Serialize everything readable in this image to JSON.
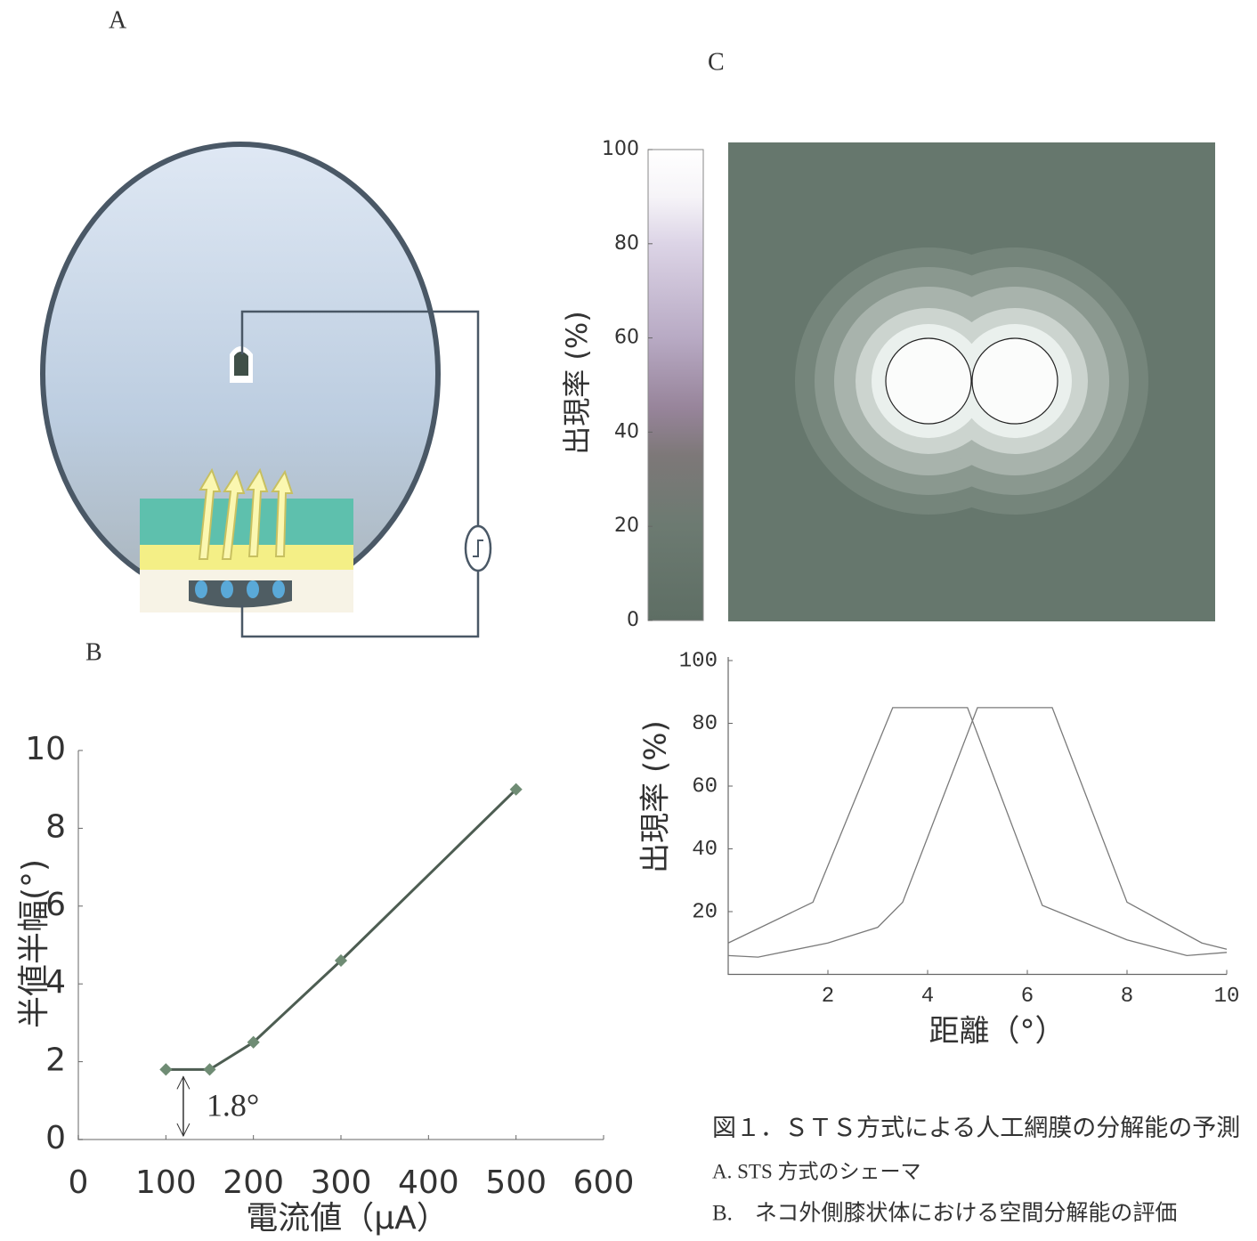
{
  "panel_labels": [
    "A",
    "B",
    "C"
  ],
  "chart_data": [
    {
      "type": "line",
      "x_label": "電流値（μA）",
      "y_label": "半値半幅(°)",
      "x": [
        100,
        150,
        200,
        300,
        500
      ],
      "values": [
        1.8,
        1.8,
        2.5,
        4.6,
        9.0
      ],
      "color": "#4d5d52",
      "marker_color": "#6f8c74",
      "xlim": [
        0,
        600
      ],
      "ylim": [
        0,
        10
      ],
      "xticks": [
        0,
        100,
        200,
        300,
        400,
        500,
        600
      ],
      "yticks": [
        0,
        2,
        4,
        6,
        8,
        10
      ],
      "annotation": "1.8°",
      "grid": false
    },
    {
      "type": "colorbar",
      "y_label": "出現率 (%)",
      "ylim": [
        0,
        100
      ],
      "yticks": [
        0,
        20,
        40,
        60,
        80,
        100
      ]
    },
    {
      "type": "multiline",
      "x_label": "距離（°）",
      "y_label": "出現率 (%)",
      "series": [
        {
          "color": "#7a7a7a",
          "x": [
            0,
            1.7,
            3.3,
            4.8,
            6.3,
            8,
            9.2,
            10
          ],
          "values": [
            10,
            23,
            85,
            85,
            22,
            11,
            6,
            7
          ]
        },
        {
          "color": "#7a7a7a",
          "x": [
            0,
            0.6,
            2,
            3,
            3.5,
            5,
            6.5,
            8,
            9.5,
            10
          ],
          "values": [
            6,
            5.5,
            10,
            15,
            23,
            85,
            85,
            23,
            10,
            8
          ]
        }
      ],
      "xlim": [
        0,
        10
      ],
      "ylim": [
        0,
        100
      ],
      "xticks": [
        2,
        4,
        6,
        8,
        10
      ],
      "yticks": [
        20,
        40,
        60,
        80,
        100
      ],
      "grid": false
    }
  ],
  "caption": [
    "図１．ＳＴＳ方式による人工網膜の分解能の予測",
    "A. STS 方式のシェーマ",
    "B.　ネコ外側膝状体における空間分解能の評価"
  ]
}
